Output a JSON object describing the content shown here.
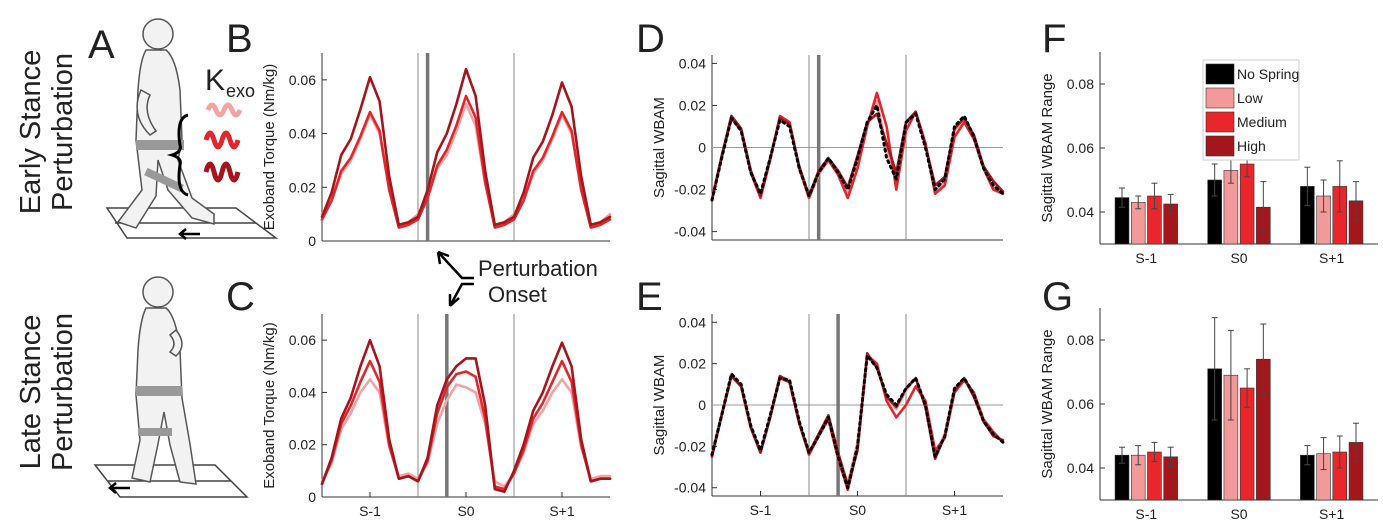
{
  "figure": {
    "panel_labels": [
      "A",
      "B",
      "C",
      "D",
      "E",
      "F",
      "G"
    ],
    "row_labels": [
      [
        "Early Stance",
        "Perturbation"
      ],
      [
        "Late Stance",
        "Perturbation"
      ]
    ],
    "stiffness_symbol": "K",
    "stiffness_subscript": "exo",
    "onset_label": [
      "Perturbation",
      "Onset"
    ]
  },
  "chart_data": [
    {
      "type": "line",
      "y_label": "Exoband Torque (Nm/kg)",
      "x": [
        0,
        10,
        20,
        30,
        40,
        50,
        60,
        70,
        80,
        90,
        100,
        110,
        120,
        130,
        140,
        150,
        160,
        170,
        180,
        190,
        200,
        210,
        220,
        230,
        240,
        250,
        260,
        270,
        280,
        290,
        300
      ],
      "xlim": [
        0,
        300
      ],
      "ylim": [
        0,
        0.07
      ],
      "yticks": [
        0,
        0.02,
        0.04,
        0.06
      ],
      "strides": [
        100,
        200
      ],
      "onset": 110,
      "series": [
        {
          "color": "#f4a3a3",
          "values": [
            0.01,
            0.015,
            0.025,
            0.03,
            0.038,
            0.047,
            0.04,
            0.019,
            0.006,
            0.007,
            0.01,
            0.016,
            0.027,
            0.032,
            0.041,
            0.051,
            0.043,
            0.021,
            0.006,
            0.007,
            0.01,
            0.015,
            0.025,
            0.03,
            0.038,
            0.047,
            0.04,
            0.019,
            0.006,
            0.007,
            0.01
          ]
        },
        {
          "color": "#e3262b",
          "values": [
            0.008,
            0.015,
            0.026,
            0.031,
            0.039,
            0.048,
            0.041,
            0.019,
            0.005,
            0.006,
            0.008,
            0.016,
            0.028,
            0.034,
            0.043,
            0.054,
            0.046,
            0.022,
            0.005,
            0.006,
            0.008,
            0.015,
            0.026,
            0.031,
            0.039,
            0.048,
            0.041,
            0.019,
            0.005,
            0.006,
            0.008
          ]
        },
        {
          "color": "#a8141b",
          "values": [
            0.009,
            0.018,
            0.032,
            0.038,
            0.049,
            0.061,
            0.052,
            0.024,
            0.006,
            0.007,
            0.009,
            0.019,
            0.033,
            0.04,
            0.051,
            0.064,
            0.054,
            0.026,
            0.006,
            0.007,
            0.009,
            0.018,
            0.031,
            0.037,
            0.047,
            0.059,
            0.05,
            0.024,
            0.006,
            0.007,
            0.009
          ]
        }
      ]
    },
    {
      "type": "line",
      "y_label": "Exoband Torque (Nm/kg)",
      "x": [
        0,
        10,
        20,
        30,
        40,
        50,
        60,
        70,
        80,
        90,
        100,
        110,
        120,
        130,
        140,
        150,
        160,
        170,
        180,
        190,
        200,
        210,
        220,
        230,
        240,
        250,
        260,
        270,
        280,
        290,
        300
      ],
      "xlim": [
        0,
        300
      ],
      "ylim": [
        0,
        0.07
      ],
      "yticks": [
        0,
        0.02,
        0.04,
        0.06
      ],
      "xticks": [
        {
          "value": 50,
          "label": "S-1"
        },
        {
          "value": 150,
          "label": "S0"
        },
        {
          "value": 250,
          "label": "S+1"
        }
      ],
      "strides": [
        100,
        200
      ],
      "onset": 130,
      "series": [
        {
          "color": "#f4a3a3",
          "values": [
            0.006,
            0.013,
            0.026,
            0.032,
            0.04,
            0.045,
            0.04,
            0.019,
            0.008,
            0.009,
            0.007,
            0.013,
            0.028,
            0.037,
            0.043,
            0.042,
            0.04,
            0.028,
            0.006,
            0.004,
            0.009,
            0.017,
            0.028,
            0.033,
            0.04,
            0.045,
            0.04,
            0.019,
            0.007,
            0.008,
            0.008
          ]
        },
        {
          "color": "#e3262b",
          "values": [
            0.005,
            0.014,
            0.028,
            0.035,
            0.044,
            0.052,
            0.044,
            0.02,
            0.007,
            0.008,
            0.006,
            0.014,
            0.032,
            0.042,
            0.047,
            0.048,
            0.046,
            0.03,
            0.004,
            0.003,
            0.009,
            0.018,
            0.03,
            0.036,
            0.044,
            0.052,
            0.044,
            0.02,
            0.006,
            0.007,
            0.007
          ]
        },
        {
          "color": "#a8141b",
          "values": [
            0.005,
            0.015,
            0.03,
            0.038,
            0.05,
            0.06,
            0.05,
            0.022,
            0.007,
            0.008,
            0.006,
            0.015,
            0.035,
            0.045,
            0.05,
            0.053,
            0.053,
            0.035,
            0.003,
            0.002,
            0.01,
            0.02,
            0.033,
            0.04,
            0.05,
            0.059,
            0.05,
            0.022,
            0.006,
            0.007,
            0.007
          ]
        }
      ]
    },
    {
      "type": "line",
      "y_label": "Sagittal WBAM",
      "x": [
        0,
        10,
        20,
        30,
        40,
        50,
        60,
        70,
        80,
        90,
        100,
        110,
        120,
        130,
        140,
        150,
        160,
        170,
        180,
        190,
        200,
        210,
        220,
        230,
        240,
        250,
        260,
        270,
        280,
        290,
        300
      ],
      "xlim": [
        0,
        300
      ],
      "ylim": [
        -0.044,
        0.044
      ],
      "yticks": [
        -0.04,
        -0.02,
        0,
        0.02,
        0.04
      ],
      "zero_line": true,
      "strides": [
        100,
        200
      ],
      "onset": 110,
      "series": [
        {
          "color": "#f4a3a3",
          "values": [
            -0.024,
            -0.004,
            0.015,
            0.009,
            -0.011,
            -0.023,
            -0.006,
            0.014,
            0.011,
            -0.01,
            -0.024,
            -0.013,
            -0.006,
            -0.012,
            -0.021,
            -0.006,
            0.011,
            0.022,
            0.0,
            -0.016,
            0.011,
            0.017,
            0.002,
            -0.021,
            -0.016,
            0.008,
            0.013,
            0.005,
            -0.01,
            -0.019,
            -0.022
          ]
        },
        {
          "color": "#e3262b",
          "values": [
            -0.025,
            -0.005,
            0.014,
            0.008,
            -0.012,
            -0.024,
            -0.006,
            0.015,
            0.012,
            -0.01,
            -0.024,
            -0.012,
            -0.006,
            -0.013,
            -0.024,
            -0.01,
            0.01,
            0.026,
            0.01,
            -0.02,
            0.008,
            0.017,
            0.002,
            -0.022,
            -0.018,
            0.005,
            0.012,
            0.004,
            -0.01,
            -0.02,
            -0.022
          ]
        },
        {
          "color": "#a8141b",
          "values": [
            -0.025,
            -0.004,
            0.015,
            0.009,
            -0.011,
            -0.023,
            -0.005,
            0.014,
            0.011,
            -0.009,
            -0.023,
            -0.011,
            -0.005,
            -0.011,
            -0.019,
            -0.004,
            0.012,
            0.016,
            0.002,
            -0.012,
            0.012,
            0.017,
            0.001,
            -0.018,
            -0.014,
            0.009,
            0.014,
            0.006,
            -0.009,
            -0.016,
            -0.021
          ]
        },
        {
          "color": "#000000",
          "style": "dotted",
          "values": [
            -0.025,
            -0.005,
            0.014,
            0.008,
            -0.012,
            -0.022,
            -0.005,
            0.013,
            0.01,
            -0.01,
            -0.023,
            -0.012,
            -0.005,
            -0.012,
            -0.02,
            -0.005,
            0.012,
            0.02,
            -0.005,
            -0.015,
            0.012,
            0.016,
            0.0,
            -0.02,
            -0.015,
            0.01,
            0.015,
            0.005,
            -0.01,
            -0.018,
            -0.022
          ]
        }
      ]
    },
    {
      "type": "line",
      "y_label": "Sagittal WBAM",
      "x": [
        0,
        10,
        20,
        30,
        40,
        50,
        60,
        70,
        80,
        90,
        100,
        110,
        120,
        130,
        140,
        150,
        160,
        170,
        180,
        190,
        200,
        210,
        220,
        230,
        240,
        250,
        260,
        270,
        280,
        290,
        300
      ],
      "xlim": [
        0,
        300
      ],
      "ylim": [
        -0.044,
        0.044
      ],
      "yticks": [
        -0.04,
        -0.02,
        0,
        0.02,
        0.04
      ],
      "zero_line": true,
      "xticks": [
        {
          "value": 50,
          "label": "S-1"
        },
        {
          "value": 150,
          "label": "S0"
        },
        {
          "value": 250,
          "label": "S+1"
        }
      ],
      "strides": [
        100,
        200
      ],
      "onset": 130,
      "series": [
        {
          "color": "#f4a3a3",
          "values": [
            -0.024,
            -0.004,
            0.015,
            0.01,
            -0.01,
            -0.023,
            -0.005,
            0.014,
            0.012,
            -0.008,
            -0.024,
            -0.014,
            -0.006,
            -0.024,
            -0.038,
            -0.018,
            0.023,
            0.019,
            0.004,
            -0.002,
            0.007,
            0.013,
            0.001,
            -0.024,
            -0.014,
            0.008,
            0.013,
            0.005,
            -0.008,
            -0.014,
            -0.018
          ]
        },
        {
          "color": "#e3262b",
          "values": [
            -0.024,
            -0.005,
            0.014,
            0.009,
            -0.011,
            -0.023,
            -0.006,
            0.013,
            0.011,
            -0.009,
            -0.024,
            -0.015,
            -0.007,
            -0.026,
            -0.041,
            -0.021,
            0.024,
            0.02,
            0.002,
            -0.006,
            0.0,
            0.009,
            0.002,
            -0.022,
            -0.016,
            0.006,
            0.012,
            0.006,
            -0.007,
            -0.013,
            -0.018
          ]
        },
        {
          "color": "#a8141b",
          "values": [
            -0.025,
            -0.005,
            0.014,
            0.009,
            -0.011,
            -0.023,
            -0.006,
            0.014,
            0.011,
            -0.009,
            -0.023,
            -0.014,
            -0.005,
            -0.023,
            -0.039,
            -0.022,
            0.025,
            0.018,
            0.004,
            -0.001,
            0.008,
            0.013,
            -0.001,
            -0.026,
            -0.015,
            0.007,
            0.013,
            0.004,
            -0.008,
            -0.015,
            -0.017
          ]
        },
        {
          "color": "#000000",
          "style": "dotted",
          "values": [
            -0.024,
            -0.005,
            0.015,
            0.01,
            -0.01,
            -0.022,
            -0.005,
            0.013,
            0.012,
            -0.008,
            -0.023,
            -0.015,
            -0.006,
            -0.025,
            -0.04,
            -0.02,
            0.024,
            0.018,
            0.005,
            0.0,
            0.008,
            0.013,
            0.0,
            -0.025,
            -0.015,
            0.008,
            0.013,
            0.005,
            -0.008,
            -0.014,
            -0.018
          ]
        }
      ]
    },
    {
      "type": "bar",
      "y_label": "Sagittal WBAM Range",
      "categories": [
        "S-1",
        "S0",
        "S+1"
      ],
      "ylim": [
        0.03,
        0.09
      ],
      "yticks": [
        0.04,
        0.06,
        0.08
      ],
      "legend": "upper right",
      "series": [
        {
          "name": "No Spring",
          "color": "#000000",
          "values": [
            0.0445,
            0.05,
            0.048
          ],
          "errors": [
            0.003,
            0.005,
            0.006
          ]
        },
        {
          "name": "Low",
          "color": "#f29a9a",
          "values": [
            0.043,
            0.053,
            0.045
          ],
          "errors": [
            0.002,
            0.004,
            0.005
          ]
        },
        {
          "name": "Medium",
          "color": "#e8262b",
          "values": [
            0.045,
            0.055,
            0.048
          ],
          "errors": [
            0.004,
            0.004,
            0.008
          ]
        },
        {
          "name": "High",
          "color": "#a3161c",
          "values": [
            0.0425,
            0.0415,
            0.0435
          ],
          "errors": [
            0.003,
            0.008,
            0.006
          ]
        }
      ]
    },
    {
      "type": "bar",
      "y_label": "Sagittal WBAM Range",
      "categories": [
        "S-1",
        "S0",
        "S+1"
      ],
      "ylim": [
        0.03,
        0.09
      ],
      "yticks": [
        0.04,
        0.06,
        0.08
      ],
      "series": [
        {
          "color": "#000000",
          "values": [
            0.044,
            0.071,
            0.044
          ],
          "errors": [
            0.0025,
            0.016,
            0.003
          ]
        },
        {
          "color": "#f29a9a",
          "values": [
            0.044,
            0.069,
            0.0445
          ],
          "errors": [
            0.003,
            0.014,
            0.005
          ]
        },
        {
          "color": "#e8262b",
          "values": [
            0.045,
            0.065,
            0.045
          ],
          "errors": [
            0.003,
            0.006,
            0.005
          ]
        },
        {
          "color": "#a3161c",
          "values": [
            0.0435,
            0.074,
            0.048
          ],
          "errors": [
            0.003,
            0.011,
            0.006
          ]
        }
      ]
    }
  ]
}
